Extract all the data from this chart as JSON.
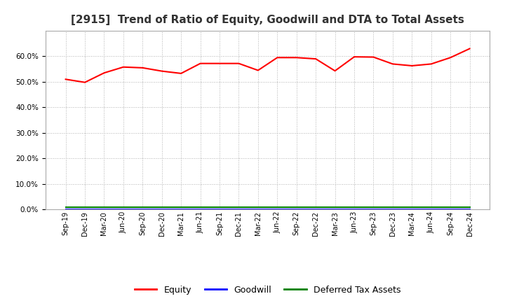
{
  "title": "[2915]  Trend of Ratio of Equity, Goodwill and DTA to Total Assets",
  "x_labels": [
    "Sep-19",
    "Dec-19",
    "Mar-20",
    "Jun-20",
    "Sep-20",
    "Dec-20",
    "Mar-21",
    "Jun-21",
    "Sep-21",
    "Dec-21",
    "Mar-22",
    "Jun-22",
    "Sep-22",
    "Dec-22",
    "Mar-23",
    "Jun-23",
    "Sep-23",
    "Dec-23",
    "Mar-24",
    "Jun-24",
    "Sep-24",
    "Dec-24"
  ],
  "equity": [
    51.0,
    49.8,
    53.5,
    55.8,
    55.5,
    54.2,
    53.3,
    57.2,
    57.2,
    57.2,
    54.5,
    59.5,
    59.5,
    59.0,
    54.3,
    59.8,
    59.7,
    57.0,
    56.3,
    57.0,
    59.5,
    63.0
  ],
  "goodwill": [
    0.0,
    0.0,
    0.0,
    0.0,
    0.0,
    0.0,
    0.0,
    0.0,
    0.0,
    0.0,
    0.0,
    0.0,
    0.0,
    0.0,
    0.0,
    0.0,
    0.0,
    0.0,
    0.0,
    0.0,
    0.0,
    0.0
  ],
  "dta": [
    0.8,
    0.8,
    0.8,
    0.8,
    0.8,
    0.8,
    0.8,
    0.8,
    0.8,
    0.8,
    0.8,
    0.8,
    0.8,
    0.8,
    0.8,
    0.8,
    0.8,
    0.8,
    0.8,
    0.8,
    0.8,
    0.8
  ],
  "equity_color": "#FF0000",
  "goodwill_color": "#0000FF",
  "dta_color": "#008000",
  "ylim": [
    0,
    70
  ],
  "yticks": [
    0,
    10,
    20,
    30,
    40,
    50,
    60
  ],
  "background_color": "#FFFFFF",
  "plot_bg_color": "#FFFFFF",
  "grid_color": "#AAAAAA",
  "title_fontsize": 11,
  "legend_labels": [
    "Equity",
    "Goodwill",
    "Deferred Tax Assets"
  ]
}
